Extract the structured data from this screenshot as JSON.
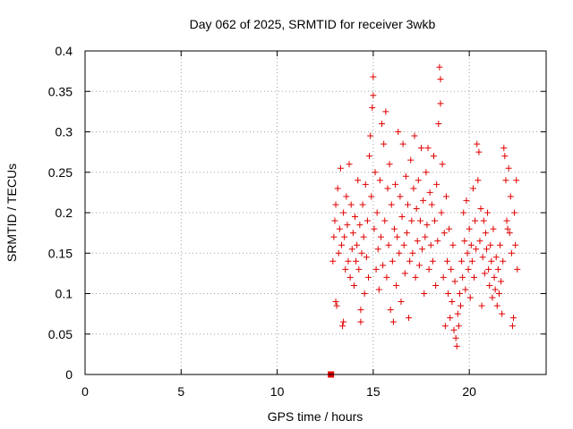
{
  "chart_data": {
    "type": "scatter",
    "title": "Day 062 of 2025, SRMTID for receiver 3wkb",
    "xlabel": "GPS time / hours",
    "ylabel": "SRMTID / TECUs",
    "xlim": [
      0,
      24
    ],
    "ylim": [
      0,
      0.4
    ],
    "xticks": [
      0,
      5,
      10,
      15,
      20
    ],
    "xtick_labels": [
      "0",
      "5",
      "10",
      "15",
      "20"
    ],
    "yticks": [
      0,
      0.05,
      0.1,
      0.15,
      0.2,
      0.25,
      0.3,
      0.35,
      0.4
    ],
    "ytick_labels": [
      "0",
      "0.05",
      "0.1",
      "0.15",
      "0.2",
      "0.25",
      "0.3",
      "0.35",
      "0.4"
    ],
    "grid": true,
    "marker_color": "#e00000",
    "series": [
      {
        "name": "SRMTID",
        "marker": "plus",
        "points": [
          [
            12.9,
            0.14
          ],
          [
            12.95,
            0.17
          ],
          [
            13.0,
            0.19
          ],
          [
            13.05,
            0.21
          ],
          [
            13.05,
            0.09
          ],
          [
            13.1,
            0.085
          ],
          [
            13.15,
            0.23
          ],
          [
            13.2,
            0.15
          ],
          [
            13.25,
            0.18
          ],
          [
            13.3,
            0.255
          ],
          [
            13.35,
            0.16
          ],
          [
            13.4,
            0.06
          ],
          [
            13.45,
            0.2
          ],
          [
            13.45,
            0.065
          ],
          [
            13.5,
            0.17
          ],
          [
            13.55,
            0.13
          ],
          [
            13.6,
            0.22
          ],
          [
            13.65,
            0.185
          ],
          [
            13.7,
            0.14
          ],
          [
            13.75,
            0.26
          ],
          [
            13.8,
            0.12
          ],
          [
            13.85,
            0.21
          ],
          [
            13.9,
            0.155
          ],
          [
            13.95,
            0.175
          ],
          [
            14.0,
            0.11
          ],
          [
            14.05,
            0.195
          ],
          [
            14.1,
            0.14
          ],
          [
            14.15,
            0.16
          ],
          [
            14.2,
            0.24
          ],
          [
            14.25,
            0.13
          ],
          [
            14.3,
            0.185
          ],
          [
            14.35,
            0.08
          ],
          [
            14.35,
            0.065
          ],
          [
            14.4,
            0.15
          ],
          [
            14.45,
            0.21
          ],
          [
            14.5,
            0.17
          ],
          [
            14.55,
            0.1
          ],
          [
            14.6,
            0.235
          ],
          [
            14.65,
            0.145
          ],
          [
            14.7,
            0.19
          ],
          [
            14.75,
            0.12
          ],
          [
            14.8,
            0.27
          ],
          [
            14.85,
            0.295
          ],
          [
            14.9,
            0.22
          ],
          [
            14.95,
            0.33
          ],
          [
            15.0,
            0.345
          ],
          [
            15.0,
            0.368
          ],
          [
            15.05,
            0.18
          ],
          [
            15.1,
            0.25
          ],
          [
            15.15,
            0.13
          ],
          [
            15.2,
            0.2
          ],
          [
            15.25,
            0.155
          ],
          [
            15.3,
            0.105
          ],
          [
            15.35,
            0.24
          ],
          [
            15.4,
            0.17
          ],
          [
            15.45,
            0.31
          ],
          [
            15.5,
            0.135
          ],
          [
            15.55,
            0.285
          ],
          [
            15.6,
            0.19
          ],
          [
            15.65,
            0.325
          ],
          [
            15.7,
            0.12
          ],
          [
            15.75,
            0.23
          ],
          [
            15.8,
            0.16
          ],
          [
            15.85,
            0.26
          ],
          [
            15.9,
            0.08
          ],
          [
            15.95,
            0.21
          ],
          [
            16.0,
            0.14
          ],
          [
            16.05,
            0.065
          ],
          [
            16.1,
            0.18
          ],
          [
            16.15,
            0.235
          ],
          [
            16.2,
            0.11
          ],
          [
            16.25,
            0.17
          ],
          [
            16.3,
            0.3
          ],
          [
            16.35,
            0.15
          ],
          [
            16.4,
            0.22
          ],
          [
            16.45,
            0.09
          ],
          [
            16.5,
            0.195
          ],
          [
            16.55,
            0.285
          ],
          [
            16.6,
            0.16
          ],
          [
            16.65,
            0.125
          ],
          [
            16.7,
            0.245
          ],
          [
            16.75,
            0.175
          ],
          [
            16.8,
            0.21
          ],
          [
            16.85,
            0.07
          ],
          [
            16.9,
            0.14
          ],
          [
            16.95,
            0.265
          ],
          [
            17.0,
            0.19
          ],
          [
            17.05,
            0.15
          ],
          [
            17.1,
            0.23
          ],
          [
            17.15,
            0.295
          ],
          [
            17.2,
            0.12
          ],
          [
            17.25,
            0.205
          ],
          [
            17.3,
            0.165
          ],
          [
            17.35,
            0.24
          ],
          [
            17.4,
            0.135
          ],
          [
            17.45,
            0.19
          ],
          [
            17.5,
            0.28
          ],
          [
            17.55,
            0.155
          ],
          [
            17.6,
            0.215
          ],
          [
            17.65,
            0.1
          ],
          [
            17.7,
            0.17
          ],
          [
            17.75,
            0.25
          ],
          [
            17.8,
            0.185
          ],
          [
            17.85,
            0.28
          ],
          [
            17.9,
            0.13
          ],
          [
            17.95,
            0.225
          ],
          [
            18.0,
            0.16
          ],
          [
            18.05,
            0.21
          ],
          [
            18.1,
            0.14
          ],
          [
            18.15,
            0.27
          ],
          [
            18.2,
            0.19
          ],
          [
            18.25,
            0.11
          ],
          [
            18.3,
            0.235
          ],
          [
            18.35,
            0.165
          ],
          [
            18.4,
            0.31
          ],
          [
            18.45,
            0.38
          ],
          [
            18.5,
            0.365
          ],
          [
            18.5,
            0.335
          ],
          [
            18.55,
            0.2
          ],
          [
            18.6,
            0.26
          ],
          [
            18.65,
            0.12
          ],
          [
            18.7,
            0.175
          ],
          [
            18.75,
            0.06
          ],
          [
            18.8,
            0.22
          ],
          [
            18.85,
            0.14
          ],
          [
            18.9,
            0.1
          ],
          [
            18.95,
            0.18
          ],
          [
            19.0,
            0.07
          ],
          [
            19.05,
            0.13
          ],
          [
            19.1,
            0.09
          ],
          [
            19.15,
            0.16
          ],
          [
            19.2,
            0.055
          ],
          [
            19.25,
            0.115
          ],
          [
            19.3,
            0.045
          ],
          [
            19.35,
            0.035
          ],
          [
            19.4,
            0.075
          ],
          [
            19.45,
            0.06
          ],
          [
            19.5,
            0.1
          ],
          [
            19.55,
            0.085
          ],
          [
            19.6,
            0.14
          ],
          [
            19.65,
            0.12
          ],
          [
            19.7,
            0.2
          ],
          [
            19.75,
            0.165
          ],
          [
            19.8,
            0.105
          ],
          [
            19.85,
            0.215
          ],
          [
            19.9,
            0.15
          ],
          [
            19.95,
            0.13
          ],
          [
            20.0,
            0.18
          ],
          [
            20.05,
            0.095
          ],
          [
            20.1,
            0.16
          ],
          [
            20.15,
            0.14
          ],
          [
            20.2,
            0.23
          ],
          [
            20.25,
            0.12
          ],
          [
            20.3,
            0.19
          ],
          [
            20.35,
            0.155
          ],
          [
            20.4,
            0.285
          ],
          [
            20.45,
            0.24
          ],
          [
            20.5,
            0.275
          ],
          [
            20.55,
            0.165
          ],
          [
            20.6,
            0.205
          ],
          [
            20.65,
            0.085
          ],
          [
            20.7,
            0.145
          ],
          [
            20.75,
            0.19
          ],
          [
            20.8,
            0.125
          ],
          [
            20.85,
            0.175
          ],
          [
            20.9,
            0.155
          ],
          [
            20.95,
            0.2
          ],
          [
            21.0,
            0.13
          ],
          [
            21.05,
            0.11
          ],
          [
            21.1,
            0.16
          ],
          [
            21.15,
            0.14
          ],
          [
            21.2,
            0.095
          ],
          [
            21.25,
            0.18
          ],
          [
            21.3,
            0.12
          ],
          [
            21.35,
            0.105
          ],
          [
            21.4,
            0.145
          ],
          [
            21.45,
            0.085
          ],
          [
            21.5,
            0.13
          ],
          [
            21.55,
            0.1
          ],
          [
            21.6,
            0.16
          ],
          [
            21.65,
            0.115
          ],
          [
            21.7,
            0.075
          ],
          [
            21.75,
            0.14
          ],
          [
            21.8,
            0.28
          ],
          [
            21.85,
            0.27
          ],
          [
            21.9,
            0.24
          ],
          [
            21.95,
            0.19
          ],
          [
            22.0,
            0.18
          ],
          [
            22.05,
            0.255
          ],
          [
            22.1,
            0.175
          ],
          [
            22.15,
            0.22
          ],
          [
            22.2,
            0.15
          ],
          [
            22.25,
            0.06
          ],
          [
            22.3,
            0.07
          ],
          [
            22.35,
            0.2
          ],
          [
            22.4,
            0.16
          ],
          [
            22.45,
            0.24
          ],
          [
            22.5,
            0.13
          ]
        ]
      }
    ],
    "square_markers": [
      [
        12.8,
        0
      ]
    ]
  }
}
